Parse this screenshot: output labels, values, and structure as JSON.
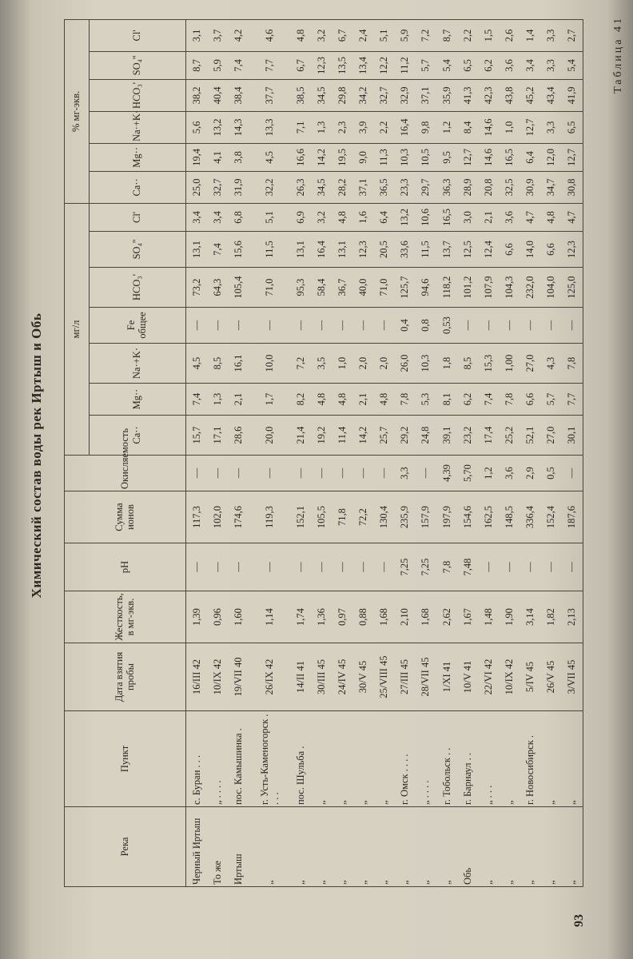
{
  "title": "Химический состав воды рек Иртыш и Обь",
  "table_number": "Таблица 41",
  "page_number": "93",
  "table": {
    "group_labels": [
      "мг/л",
      "% мг-экв."
    ],
    "columns": [
      "Река",
      "Пункт",
      "Дата взятия пробы",
      "Жесткость, в мг-экв.",
      "pH",
      "Сумма ионов",
      "Окисляемость",
      "Ca··",
      "Mg··",
      "Na·+K·",
      "Fe общее",
      "HCO₃'",
      "SO₄''",
      "Cl'",
      "Ca··",
      "Mg··",
      "Na·+K·",
      "HCO₃'",
      "SO₄''",
      "Cl'"
    ],
    "rows": [
      [
        "Черный Иртыш",
        "с. Буран . . .",
        "16/III 42",
        "1,39",
        "—",
        "117,3",
        "—",
        "15,7",
        "7,4",
        "4,5",
        "—",
        "73,2",
        "13,1",
        "3,4",
        "25,0",
        "19,4",
        "5,6",
        "38,2",
        "8,7",
        "3,1"
      ],
      [
        "То же",
        "„ . . . .",
        "10/IX 42",
        "0,96",
        "—",
        "102,0",
        "—",
        "17,1",
        "1,3",
        "8,5",
        "—",
        "64,3",
        "7,4",
        "3,4",
        "32,7",
        "4,1",
        "13,2",
        "40,4",
        "5,9",
        "3,7"
      ],
      [
        "Иртыш",
        "пос. Камышинка .",
        "19/VII 40",
        "1,60",
        "—",
        "174,6",
        "—",
        "28,6",
        "2,1",
        "16,1",
        "—",
        "105,4",
        "15,6",
        "6,8",
        "31,9",
        "3,8",
        "14,3",
        "38,4",
        "7,4",
        "4,2"
      ],
      [
        "„",
        "г. Усть-Каменогорск . . . .",
        "26/IX 42",
        "1,14",
        "—",
        "119,3",
        "—",
        "20,0",
        "1,7",
        "10,0",
        "—",
        "71,0",
        "11,5",
        "5,1",
        "32,2",
        "4,5",
        "13,3",
        "37,7",
        "7,7",
        "4,6"
      ],
      [
        "„",
        "пос. Шульба .",
        "14/II 41",
        "1,74",
        "—",
        "152,1",
        "—",
        "21,4",
        "8,2",
        "7,2",
        "—",
        "95,3",
        "13,1",
        "6,9",
        "26,3",
        "16,6",
        "7,1",
        "38,5",
        "6,7",
        "4,8"
      ],
      [
        "„",
        "„",
        "30/III 45",
        "1,36",
        "—",
        "105,5",
        "—",
        "19,2",
        "4,8",
        "3,5",
        "—",
        "58,4",
        "16,4",
        "3,2",
        "34,5",
        "14,2",
        "1,3",
        "34,5",
        "12,3",
        "3,2"
      ],
      [
        "„",
        "„",
        "24/IV 45",
        "0,97",
        "—",
        "71,8",
        "—",
        "11,4",
        "4,8",
        "1,0",
        "—",
        "36,7",
        "13,1",
        "4,8",
        "28,2",
        "19,5",
        "2,3",
        "29,8",
        "13,5",
        "6,7"
      ],
      [
        "„",
        "„",
        "30/V 45",
        "0,88",
        "—",
        "72,2",
        "—",
        "14,2",
        "2,1",
        "2,0",
        "—",
        "40,0",
        "12,3",
        "1,6",
        "37,1",
        "9,0",
        "3,9",
        "34,2",
        "13,4",
        "2,4"
      ],
      [
        "„",
        "„",
        "25/VIII 45",
        "1,68",
        "—",
        "130,4",
        "—",
        "25,7",
        "4,8",
        "2,0",
        "—",
        "71,0",
        "20,5",
        "6,4",
        "36,5",
        "11,3",
        "2,2",
        "32,7",
        "12,2",
        "5,1"
      ],
      [
        "„",
        "г. Омск . . . .",
        "27/III 45",
        "2,10",
        "7,25",
        "235,9",
        "3,3",
        "29,2",
        "7,8",
        "26,0",
        "0,4",
        "125,7",
        "33,6",
        "13,2",
        "23,3",
        "10,3",
        "16,4",
        "32,9",
        "11,2",
        "5,9"
      ],
      [
        "„",
        "„ . . . .",
        "28/VII 45",
        "1,68",
        "7,25",
        "157,9",
        "—",
        "24,8",
        "5,3",
        "10,3",
        "0,8",
        "94,6",
        "11,5",
        "10,6",
        "29,7",
        "10,5",
        "9,8",
        "37,1",
        "5,7",
        "7,2"
      ],
      [
        "„",
        "г. Тобольск . .",
        "1/XI 41",
        "2,62",
        "7,8",
        "197,9",
        "4,39",
        "39,1",
        "8,1",
        "1,8",
        "0,53",
        "118,2",
        "13,7",
        "16,5",
        "36,3",
        "9,5",
        "1,2",
        "35,9",
        "5,4",
        "8,7"
      ],
      [
        "Обь",
        "г. Барнаул . .",
        "10/V 41",
        "1,67",
        "7,48",
        "154,6",
        "5,70",
        "23,2",
        "6,2",
        "8,5",
        "—",
        "101,2",
        "12,5",
        "3,0",
        "28,9",
        "12,7",
        "8,4",
        "41,3",
        "6,5",
        "2,2"
      ],
      [
        "„",
        "„ . . .",
        "22/VI 42",
        "1,48",
        "—",
        "162,5",
        "1,2",
        "17,4",
        "7,4",
        "15,3",
        "—",
        "107,9",
        "12,4",
        "2,1",
        "20,8",
        "14,6",
        "14,6",
        "42,3",
        "6,2",
        "1,5"
      ],
      [
        "„",
        "„",
        "10/IX 42",
        "1,90",
        "—",
        "148,5",
        "3,6",
        "25,2",
        "7,8",
        "1,00",
        "—",
        "104,3",
        "6,6",
        "3,6",
        "32,5",
        "16,5",
        "1,0",
        "43,8",
        "3,6",
        "2,6"
      ],
      [
        "„",
        "г. Новосибирск .",
        "5/IV 45",
        "3,14",
        "—",
        "336,4",
        "2,9",
        "52,1",
        "6,6",
        "27,0",
        "—",
        "232,0",
        "14,0",
        "4,7",
        "30,9",
        "6,4",
        "12,7",
        "45,2",
        "3,4",
        "1,4"
      ],
      [
        "„",
        "„",
        "26/V 45",
        "1,82",
        "—",
        "152,4",
        "0,5",
        "27,0",
        "5,7",
        "4,3",
        "—",
        "104,0",
        "6,6",
        "4,8",
        "34,7",
        "12,0",
        "3,3",
        "43,4",
        "3,3",
        "3,3"
      ],
      [
        "„",
        "„",
        "3/VII 45",
        "2,13",
        "—",
        "187,6",
        "—",
        "30,1",
        "7,7",
        "7,8",
        "—",
        "125,0",
        "12,3",
        "4,7",
        "30,8",
        "12,7",
        "6,5",
        "41,9",
        "5,4",
        "2,7"
      ]
    ]
  }
}
